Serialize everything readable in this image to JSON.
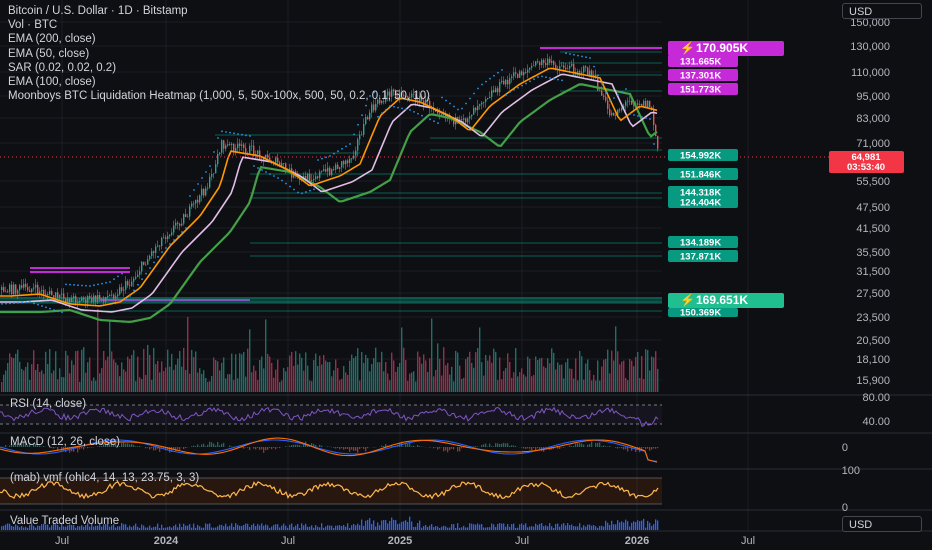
{
  "legend": {
    "title": "Bitcoin / U.S. Dollar · 1D · Bitstamp",
    "vol": "Vol · BTC",
    "ema200": "EMA (200, close)",
    "ema50": "EMA (50, close)",
    "sar": "SAR (0.02, 0.02, 0.2)",
    "ema100": "EMA (100, close)",
    "heatmap": "Moonboys BTC Liquidation Heatmap (1,000, 5, 50x-100x, 500, 50, 0.2, 0.1, 50, 10)"
  },
  "currency_label": "USD",
  "price_axis": [
    "150,000",
    "130,000",
    "110,000",
    "95,000",
    "83,000",
    "71,000",
    "55,500",
    "47,500",
    "41,500",
    "35,500",
    "31,500",
    "27,500",
    "23,500",
    "20,500",
    "18,100",
    "15,900"
  ],
  "last_price": {
    "value": "64,981",
    "countdown": "03:53:40",
    "color": "#f23645"
  },
  "heatmap_tags": {
    "top_main": "170.905K",
    "red_levels": [
      "131.665K",
      "137.301K",
      "151.773K"
    ],
    "green_levels": [
      "154.992K",
      "151.846K",
      "144.318K",
      "124.404K",
      "134.189K",
      "137.871K"
    ],
    "bottom_main": "169.651K",
    "bottom_sub": "150.369K"
  },
  "indicators": {
    "rsi": {
      "label": "RSI (14, close)",
      "axis": [
        "80.00",
        "40.00"
      ]
    },
    "macd": {
      "label": "MACD (12, 26, close)",
      "axis": [
        "0"
      ]
    },
    "mfi": {
      "label": "(mab) vmf (ohlc4, 14, 13, 23.75, 3, 3)",
      "axis": [
        "100",
        "0"
      ]
    },
    "vtv": {
      "label": "Value Traded Volume"
    }
  },
  "time_axis": [
    "Jul",
    "2024",
    "Jul",
    "2025",
    "Jul",
    "2026",
    "Jul"
  ],
  "colors": {
    "bg": "#0e0f12",
    "up": "#26a69a",
    "down": "#ef5350",
    "ema200": "#43a047",
    "ema50": "#ff9800",
    "ema100": "#e1bee7",
    "sar": "#2196f3",
    "heat_red": "#c62ad8",
    "heat_green": "#089981"
  }
}
